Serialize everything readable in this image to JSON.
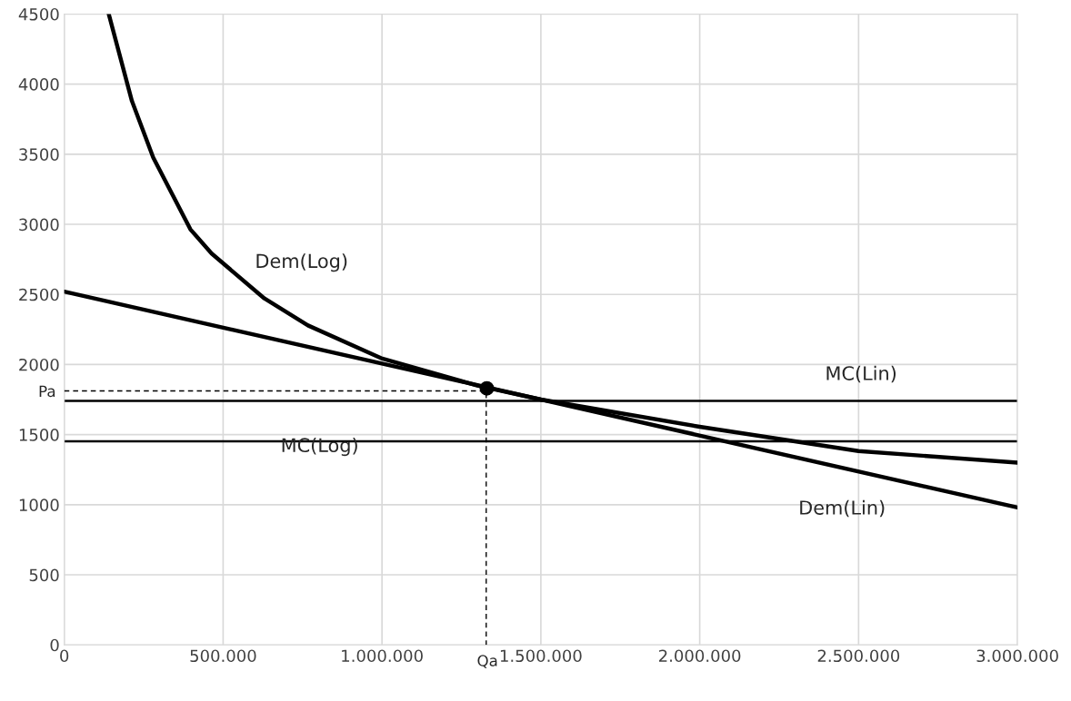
{
  "chart_data": {
    "type": "line",
    "xlim": [
      0,
      3000000
    ],
    "ylim": [
      0,
      4500
    ],
    "xticks": [
      0,
      {
        "value": 500000,
        "label": "500.000"
      },
      {
        "value": 1000000,
        "label": "1.000.000"
      },
      {
        "value": 1500000,
        "label": "1.500.000"
      },
      {
        "value": 2000000,
        "label": "2.000.000"
      },
      {
        "value": 2500000,
        "label": "2.500.000"
      },
      {
        "value": 3000000,
        "label": "3.000.000"
      }
    ],
    "yticks": [
      0,
      500,
      1000,
      1500,
      2000,
      2500,
      3000,
      3500,
      4000,
      4500
    ],
    "grid": true,
    "series": [
      {
        "color": "#000000",
        "line_style": "solid",
        "x": [
          140000,
          213000,
          280000,
          397000,
          464000,
          630000,
          767000,
          1001000,
          1300000,
          1500000,
          2000000,
          2500000,
          3000000
        ],
        "values": [
          4500,
          3879,
          3476,
          2964,
          2791,
          2471,
          2279,
          2042,
          1850,
          1750,
          1556,
          1383,
          1300
        ]
      },
      {
        "color": "#000000",
        "line_style": "solid",
        "x": [
          0,
          3000000
        ],
        "values": [
          2520,
          980
        ]
      },
      {
        "color": "#000000",
        "line_style": "dashed",
        "x": [
          0,
          1328000,
          1328000
        ],
        "values": [
          1812,
          1812,
          0
        ]
      },
      {
        "type": "scatter",
        "color": "#000000",
        "marker": "circle",
        "x": [
          1330000
        ],
        "values": [
          1830
        ]
      }
    ],
    "ref_lines": [
      {
        "axis": "y",
        "value": 1741,
        "color": "#000000"
      },
      {
        "axis": "y",
        "value": 1453,
        "color": "#000000"
      }
    ],
    "annotations": [
      "Dem(Log)",
      "MC(Lin)",
      "MC(Log)",
      "Dem(Lin)",
      "Pa",
      "Qa"
    ]
  }
}
